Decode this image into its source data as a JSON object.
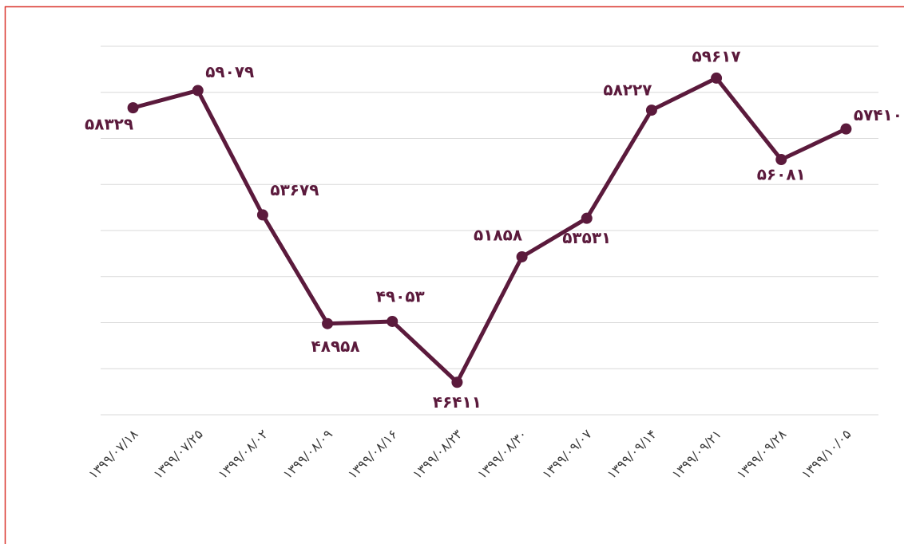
{
  "chart_data": {
    "type": "line",
    "categories": [
      "۱۳۹۹/۰۷/۱۸",
      "۱۳۹۹/۰۷/۲۵",
      "۱۳۹۹/۰۸/۰۲",
      "۱۳۹۹/۰۸/۰۹",
      "۱۳۹۹/۰۸/۱۶",
      "۱۳۹۹/۰۸/۲۳",
      "۱۳۹۹/۰۸/۳۰",
      "۱۳۹۹/۰۹/۰۷",
      "۱۳۹۹/۰۹/۱۴",
      "۱۳۹۹/۰۹/۲۱",
      "۱۳۹۹/۰۹/۲۸",
      "۱۳۹۹/۱۰/۰۵"
    ],
    "series": [
      {
        "color": "#5b1a3c",
        "values": [
          58329,
          59079,
          53679,
          48958,
          49053,
          46411,
          51858,
          53531,
          58227,
          59617,
          56081,
          57410
        ],
        "value_labels": [
          "۵۸۳۲۹",
          "۵۹۰۷۹",
          "۵۳۶۷۹",
          "۴۸۹۵۸",
          "۴۹۰۵۳",
          "۴۶۴۱۱",
          "۵۱۸۵۸",
          "۵۳۵۳۱",
          "۵۸۲۲۷",
          "۵۹۶۱۷",
          "۵۶۰۸۱",
          "۵۷۴۱۰"
        ]
      }
    ],
    "ylim": [
      45000,
      61000
    ],
    "yticks": [
      45000,
      47000,
      49000,
      51000,
      53000,
      55000,
      57000,
      59000,
      61000
    ],
    "grid": true
  }
}
